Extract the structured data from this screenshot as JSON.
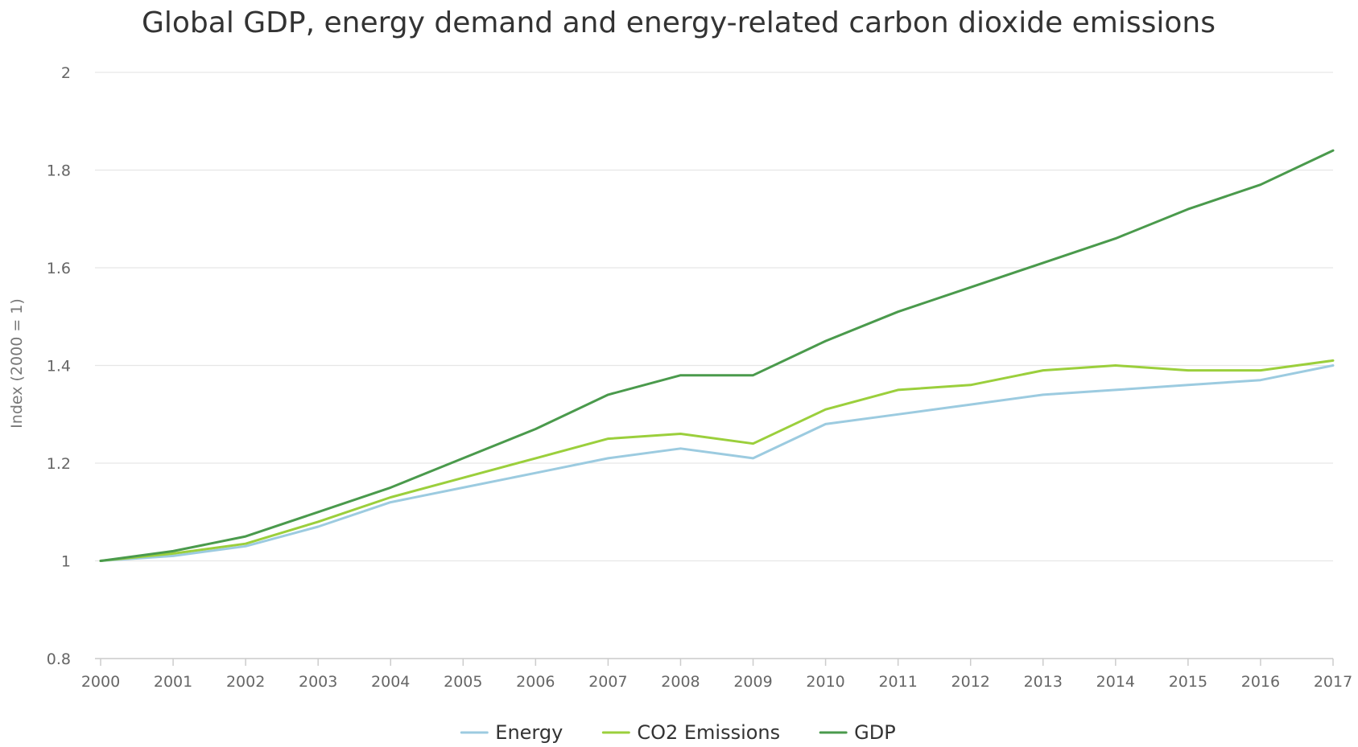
{
  "chart_data": {
    "type": "line",
    "title": "Global GDP, energy demand and energy-related carbon dioxide emissions",
    "xlabel": "",
    "ylabel": "Index (2000 = 1)",
    "ylim": [
      0.8,
      2
    ],
    "yticks": [
      "2",
      "1.8",
      "1.6",
      "1.4",
      "1.2",
      "1",
      "0.8"
    ],
    "grid": true,
    "legend_position": "bottom",
    "categories": [
      "2000",
      "2001",
      "2002",
      "2003",
      "2004",
      "2005",
      "2006",
      "2007",
      "2008",
      "2009",
      "2010",
      "2011",
      "2012",
      "2013",
      "2014",
      "2015",
      "2016",
      "2017"
    ],
    "series": [
      {
        "name": "Energy",
        "color": "#9ccbe0",
        "values": [
          1.0,
          1.01,
          1.03,
          1.07,
          1.12,
          1.15,
          1.18,
          1.21,
          1.23,
          1.21,
          1.28,
          1.3,
          1.32,
          1.34,
          1.35,
          1.36,
          1.37,
          1.4
        ]
      },
      {
        "name": "CO2 Emissions",
        "color": "#9bcf3c",
        "values": [
          1.0,
          1.015,
          1.035,
          1.08,
          1.13,
          1.17,
          1.21,
          1.25,
          1.26,
          1.24,
          1.31,
          1.35,
          1.36,
          1.39,
          1.4,
          1.39,
          1.39,
          1.41
        ]
      },
      {
        "name": "GDP",
        "color": "#4a9a4c",
        "values": [
          1.0,
          1.02,
          1.05,
          1.1,
          1.15,
          1.21,
          1.27,
          1.34,
          1.38,
          1.38,
          1.45,
          1.51,
          1.56,
          1.61,
          1.66,
          1.72,
          1.77,
          1.84
        ]
      }
    ]
  }
}
